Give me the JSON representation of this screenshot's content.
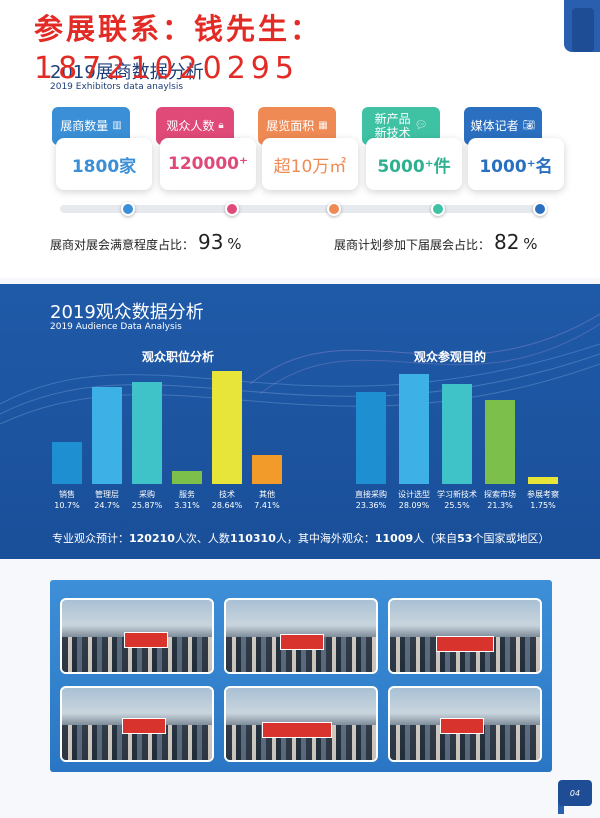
{
  "contact": {
    "line1": "参展联系：钱先生：",
    "line2": "18721020295"
  },
  "exhibitor_section": {
    "title": "2019展商数据分析",
    "subtitle": "2019 Exhibitors data anaylsis"
  },
  "stats": [
    {
      "tab": "展商数量",
      "icon": "bar-chart-icon",
      "value": "1800家",
      "color": "#3a8fd6",
      "value_color": "#3a8fd6"
    },
    {
      "tab": "观众人数",
      "icon": "lock-icon",
      "value": "120000⁺",
      "color": "#e04a79",
      "value_color": "#e04a79"
    },
    {
      "tab": "展览面积",
      "icon": "grid-icon",
      "value": "超10万㎡",
      "color": "#f08a55",
      "value_color": "#f08a55"
    },
    {
      "tab": "新产品\n新技术",
      "icon": "chat-icon",
      "value": "5000⁺件",
      "color": "#3fc2a4",
      "value_color": "#2fb191"
    },
    {
      "tab": "媒体记者",
      "icon": "camera-icon",
      "value": "1000⁺名",
      "color": "#2b6fc0",
      "value_color": "#2b6fc0"
    }
  ],
  "ratios": [
    {
      "label": "展商对展会满意程度占比：",
      "value": "93",
      "unit": "%"
    },
    {
      "label": "展商计划参加下届展会占比：",
      "value": "82",
      "unit": "%"
    }
  ],
  "audience_section": {
    "title": "2019观众数据分析",
    "subtitle": "2019  Audience Data Analysis"
  },
  "chart_data": [
    {
      "type": "bar",
      "title": "观众职位分析",
      "categories": [
        "销售",
        "管理层",
        "采购",
        "服务",
        "技术",
        "其他"
      ],
      "values": [
        10.7,
        24.7,
        25.87,
        3.31,
        28.64,
        7.41
      ],
      "value_labels": [
        "10.7%",
        "24.7%",
        "25.87%",
        "3.31%",
        "28.64%",
        "7.41%"
      ],
      "colors": [
        "#1e8fd0",
        "#3db0e6",
        "#3fc2c8",
        "#7cc04b",
        "#e7e43a",
        "#f29a2a"
      ],
      "ylim": [
        0,
        30
      ]
    },
    {
      "type": "bar",
      "title": "观众参观目的",
      "categories": [
        "直接采购",
        "设计选型",
        "学习新技术",
        "探索市场",
        "参展考察"
      ],
      "values": [
        23.36,
        28.09,
        25.5,
        21.3,
        1.75
      ],
      "value_labels": [
        "23.36%",
        "28.09%",
        "25.5%",
        "21.3%",
        "1.75%"
      ],
      "colors": [
        "#1e8fd0",
        "#3db0e6",
        "#3fc2c8",
        "#7cc04b",
        "#e7e43a"
      ],
      "ylim": [
        0,
        30
      ]
    }
  ],
  "summary": {
    "prefix": "专业观众预计：",
    "visits": "120210",
    "mid1": "人次、人数",
    "people": "110310",
    "mid2": "人，其中海外观众：",
    "overseas": "11009",
    "mid3": "人（来自",
    "countries": "53",
    "suffix": "个国家或地区）"
  },
  "page_number": "04"
}
